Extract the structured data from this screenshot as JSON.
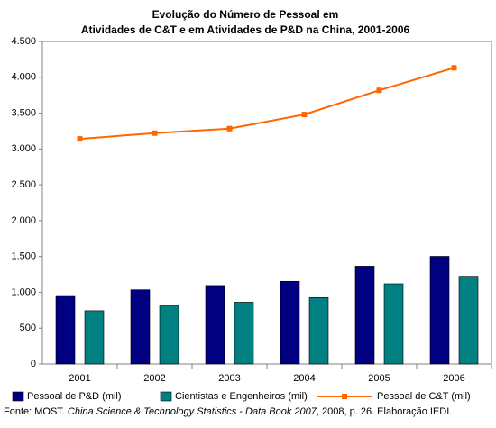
{
  "chart_data": {
    "type": "combo",
    "title": [
      "Evolução do Número de Pessoal em",
      "Atividades de C&T e em Atividades de P&D na China, 2001-2006"
    ],
    "categories": [
      "2001",
      "2002",
      "2003",
      "2004",
      "2005",
      "2006"
    ],
    "series": [
      {
        "name": "Pessoal de P&D (mil)",
        "type": "bar",
        "color": "#000080",
        "values": [
          955,
          1035,
          1095,
          1153,
          1365,
          1502
        ]
      },
      {
        "name": "Cientistas e Engenheiros (mil)",
        "type": "bar",
        "color": "#008080",
        "values": [
          743,
          811,
          862,
          926,
          1119,
          1224
        ]
      },
      {
        "name": "Pessoal de C&T (mil)",
        "type": "line",
        "color": "#FF6600",
        "values": [
          3141,
          3221,
          3284,
          3481,
          3819,
          4132
        ]
      }
    ],
    "ylim": [
      0,
      4500
    ],
    "yticks": [
      0,
      500,
      {
        "value": 1000,
        "label": "1.000"
      },
      {
        "value": 1500,
        "label": "1.500"
      },
      {
        "value": 2000,
        "label": "2.000"
      },
      {
        "value": 2500,
        "label": "2.500"
      },
      {
        "value": 3000,
        "label": "3.000"
      },
      {
        "value": 3500,
        "label": "3.500"
      },
      {
        "value": 4000,
        "label": "4.000"
      },
      {
        "value": 4500,
        "label": "4.500"
      }
    ],
    "grid": false,
    "source": [
      "Fonte: MOST. ",
      "China Science & Technology Statistics - Data Book 2007",
      ", 2008, p. 26. Elaboração IEDI."
    ]
  }
}
